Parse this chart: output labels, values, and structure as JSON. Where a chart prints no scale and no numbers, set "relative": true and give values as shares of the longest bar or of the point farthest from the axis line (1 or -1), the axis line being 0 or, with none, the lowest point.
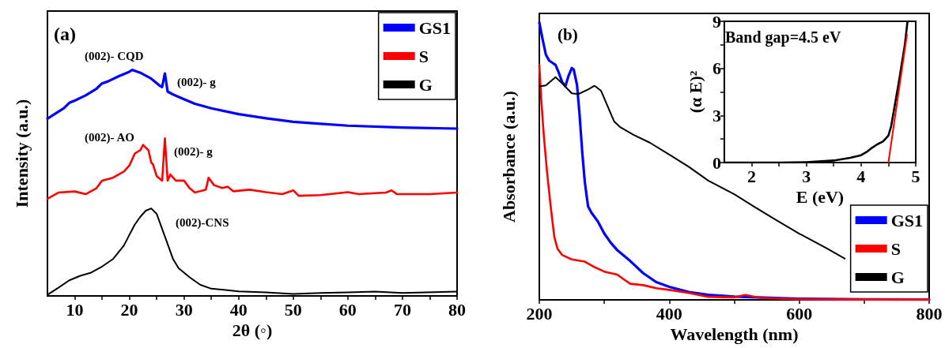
{
  "chart_data": [
    {
      "type": "line",
      "relative": true,
      "xlabel": "2θ (◦)",
      "ylabel": "Intensity (a.u.)",
      "xlim": [
        5,
        80
      ],
      "xticks": [
        10,
        {
          "value": 15,
          "label": null
        },
        20,
        {
          "value": 25,
          "label": null
        },
        30,
        {
          "value": 35,
          "label": null
        },
        40,
        {
          "value": 45,
          "label": null
        },
        50,
        {
          "value": 55,
          "label": null
        },
        60,
        {
          "value": 65,
          "label": null
        },
        70,
        {
          "value": 75,
          "label": null
        },
        80
      ],
      "legend": "top right",
      "marker": "none",
      "line_style": "solid",
      "grid": false,
      "annotations": [
        "(a)",
        "(002)- CQD",
        "(002)- g",
        "(002)- AO",
        "(002)- g",
        "(002)-CNS"
      ],
      "series": [
        {
          "name": "GS1",
          "color": "#0000ff",
          "x": [
            5,
            8,
            9,
            10,
            12,
            14,
            15,
            16,
            18,
            20,
            20.5,
            22,
            24,
            25.5,
            26,
            26.5,
            27,
            28,
            30,
            32,
            35,
            40,
            45,
            50,
            55,
            60,
            70,
            80
          ],
          "values": [
            0.784,
            0.83,
            0.854,
            0.864,
            0.887,
            0.917,
            0.94,
            0.948,
            0.971,
            0.991,
            1.0,
            0.987,
            0.961,
            0.931,
            0.924,
            0.984,
            0.904,
            0.891,
            0.87,
            0.85,
            0.83,
            0.804,
            0.786,
            0.77,
            0.761,
            0.753,
            0.745,
            0.74
          ]
        },
        {
          "name": "S",
          "color": "#ff0000",
          "x": [
            5,
            7,
            10,
            12,
            14,
            15,
            17,
            19,
            20,
            21,
            22,
            22.5,
            23.5,
            24,
            24.3,
            25,
            26,
            26.5,
            27,
            27.5,
            28.5,
            30,
            31,
            32,
            34,
            34.5,
            35.5,
            37,
            38,
            39,
            42,
            45,
            48,
            50,
            51,
            55,
            60,
            62,
            67,
            68,
            69,
            75,
            80
          ],
          "values": [
            0.43,
            0.457,
            0.462,
            0.45,
            0.477,
            0.51,
            0.523,
            0.55,
            0.577,
            0.63,
            0.644,
            0.668,
            0.644,
            0.59,
            0.583,
            0.53,
            0.51,
            0.697,
            0.51,
            0.537,
            0.51,
            0.51,
            0.477,
            0.457,
            0.47,
            0.523,
            0.49,
            0.477,
            0.483,
            0.463,
            0.47,
            0.459,
            0.45,
            0.467,
            0.443,
            0.446,
            0.459,
            0.45,
            0.457,
            0.467,
            0.45,
            0.45,
            0.457
          ]
        },
        {
          "name": "G",
          "color": "#000000",
          "x": [
            5,
            7,
            9,
            11,
            13,
            15,
            17,
            19,
            20,
            21,
            22,
            23,
            24,
            25,
            26,
            27,
            28,
            29,
            31,
            33,
            35,
            38,
            40,
            45,
            50,
            55,
            60,
            65,
            70,
            80
          ],
          "values": [
            0.005,
            0.036,
            0.069,
            0.089,
            0.103,
            0.13,
            0.163,
            0.223,
            0.27,
            0.316,
            0.35,
            0.377,
            0.387,
            0.363,
            0.296,
            0.23,
            0.163,
            0.123,
            0.083,
            0.049,
            0.032,
            0.025,
            0.02,
            0.016,
            0.009,
            0.013,
            0.016,
            0.019,
            0.013,
            0.019
          ]
        }
      ]
    },
    {
      "type": "line",
      "relative": true,
      "xlabel": "Wavelength (nm)",
      "ylabel": "Absorbance (a.u.)",
      "xlim": [
        200,
        800
      ],
      "xticks": [
        200,
        {
          "value": 300,
          "label": null
        },
        400,
        {
          "value": 500,
          "label": null
        },
        600,
        {
          "value": 700,
          "label": null
        },
        800
      ],
      "legend": "bottom right",
      "marker": "none",
      "line_style": "solid",
      "grid": false,
      "annotations": [
        "(b)"
      ],
      "series": [
        {
          "name": "GS1",
          "color": "#0000ff",
          "x": [
            200,
            205,
            210,
            215,
            220,
            225,
            230,
            235,
            240,
            245,
            250,
            253,
            258,
            262,
            266,
            270,
            275,
            280,
            290,
            300,
            310,
            320,
            340,
            360,
            380,
            400,
            430,
            460,
            500,
            600,
            700,
            800
          ],
          "values": [
            1.0,
            0.94,
            0.885,
            0.863,
            0.855,
            0.847,
            0.819,
            0.786,
            0.77,
            0.808,
            0.836,
            0.83,
            0.775,
            0.666,
            0.534,
            0.425,
            0.337,
            0.315,
            0.283,
            0.239,
            0.206,
            0.179,
            0.14,
            0.096,
            0.064,
            0.047,
            0.028,
            0.018,
            0.012,
            0.004,
            0.002,
            0.001
          ]
        },
        {
          "name": "S",
          "color": "#ff0000",
          "x": [
            200,
            203,
            207,
            212,
            218,
            223,
            228,
            235,
            250,
            270,
            285,
            300,
            320,
            330,
            340,
            360,
            380,
            400,
            430,
            460,
            500,
            517,
            540,
            600,
            700,
            800
          ],
          "values": [
            0.847,
            0.721,
            0.589,
            0.458,
            0.326,
            0.228,
            0.184,
            0.162,
            0.146,
            0.138,
            0.118,
            0.102,
            0.091,
            0.074,
            0.058,
            0.053,
            0.042,
            0.036,
            0.025,
            0.011,
            0.009,
            0.018,
            0.007,
            0.002,
            0.001,
            0.001
          ]
        },
        {
          "name": "G",
          "color": "#000000",
          "x": [
            200,
            210,
            225,
            235,
            250,
            260,
            275,
            285,
            295,
            305,
            315,
            325,
            345,
            370,
            400,
            430,
            460,
            500,
            530,
            560,
            600,
            640,
            670
          ],
          "values": [
            0.77,
            0.773,
            0.803,
            0.781,
            0.745,
            0.742,
            0.759,
            0.772,
            0.754,
            0.699,
            0.644,
            0.622,
            0.595,
            0.567,
            0.524,
            0.48,
            0.43,
            0.381,
            0.337,
            0.294,
            0.239,
            0.189,
            0.149
          ]
        }
      ]
    },
    {
      "type": "line",
      "xlabel": "E (eV)",
      "ylabel": "(α E)²",
      "xlim": [
        1.5,
        5
      ],
      "xticks": [
        2,
        {
          "value": 2.5,
          "label": null
        },
        3,
        {
          "value": 3.5,
          "label": null
        },
        4,
        {
          "value": 4.5,
          "label": null
        },
        5
      ],
      "ylim": [
        0,
        9
      ],
      "yticks": [
        0,
        {
          "value": 1.5,
          "label": null
        },
        3,
        {
          "value": 4.5,
          "label": null
        },
        6,
        {
          "value": 7.5,
          "label": null
        },
        9
      ],
      "marker": "none",
      "line_style": "solid",
      "grid": false,
      "annotations": [
        "Band gap=4.5 eV"
      ],
      "series": [
        {
          "color": "#000000",
          "x": [
            1.5,
            2.5,
            3.0,
            3.5,
            3.8,
            4.0,
            4.1,
            4.2,
            4.3,
            4.4,
            4.5,
            4.55,
            4.6,
            4.7,
            4.8,
            4.85
          ],
          "values": [
            0,
            0,
            0.02,
            0.13,
            0.3,
            0.47,
            0.67,
            0.94,
            1.17,
            1.34,
            1.72,
            2.31,
            3.31,
            5.32,
            7.49,
            9.0
          ]
        },
        {
          "color": "#ff0000",
          "x": [
            4.5,
            4.84
          ],
          "values": [
            0,
            8.16
          ]
        }
      ]
    }
  ]
}
